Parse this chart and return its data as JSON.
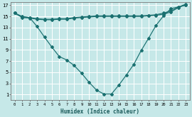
{
  "xlabel": "Humidex (Indice chaleur)",
  "background_color": "#c6e8e8",
  "grid_color": "#b0d8d8",
  "line_color": "#1a7070",
  "x_min": 0,
  "x_max": 23,
  "y_min": 0,
  "y_max": 17,
  "x_ticks": [
    0,
    1,
    2,
    3,
    4,
    5,
    6,
    7,
    8,
    9,
    10,
    11,
    12,
    13,
    14,
    15,
    16,
    17,
    18,
    19,
    20,
    21,
    22,
    23
  ],
  "y_ticks": [
    1,
    3,
    5,
    7,
    9,
    11,
    13,
    15,
    17
  ],
  "line_u_x": [
    0,
    1,
    2,
    3,
    4,
    5,
    6,
    7,
    8,
    9,
    10,
    11,
    12,
    13,
    14,
    15,
    16,
    17,
    18,
    19,
    20,
    21,
    22,
    23
  ],
  "line_u_y": [
    15.6,
    15.0,
    14.8,
    13.2,
    11.3,
    9.5,
    7.8,
    7.2,
    6.2,
    4.8,
    3.2,
    1.8,
    1.1,
    1.1,
    2.7,
    4.5,
    6.4,
    8.9,
    11.1,
    13.4,
    15.1,
    16.4,
    16.7,
    17.0
  ],
  "line_top1_x": [
    0,
    1,
    2,
    3,
    4,
    5,
    6,
    7,
    8,
    9,
    10,
    11,
    12,
    13,
    14,
    15,
    16,
    17,
    18,
    19,
    20,
    21,
    22,
    23
  ],
  "line_top1_y": [
    15.6,
    14.8,
    14.7,
    14.5,
    14.4,
    14.4,
    14.5,
    14.5,
    14.7,
    14.8,
    14.9,
    15.0,
    15.0,
    15.0,
    15.0,
    15.0,
    15.0,
    15.0,
    15.1,
    15.2,
    15.4,
    15.8,
    16.6,
    17.1
  ],
  "line_top2_x": [
    0,
    1,
    2,
    3,
    4,
    5,
    6,
    7,
    8,
    9,
    10,
    11,
    12,
    13,
    14,
    15,
    16,
    17,
    18,
    19,
    20,
    21,
    22,
    23
  ],
  "line_top2_y": [
    15.6,
    14.9,
    14.8,
    14.6,
    14.5,
    14.5,
    14.6,
    14.6,
    14.8,
    14.9,
    15.0,
    15.1,
    15.1,
    15.1,
    15.1,
    15.1,
    15.1,
    15.1,
    15.2,
    15.3,
    15.6,
    16.0,
    16.7,
    17.2
  ]
}
